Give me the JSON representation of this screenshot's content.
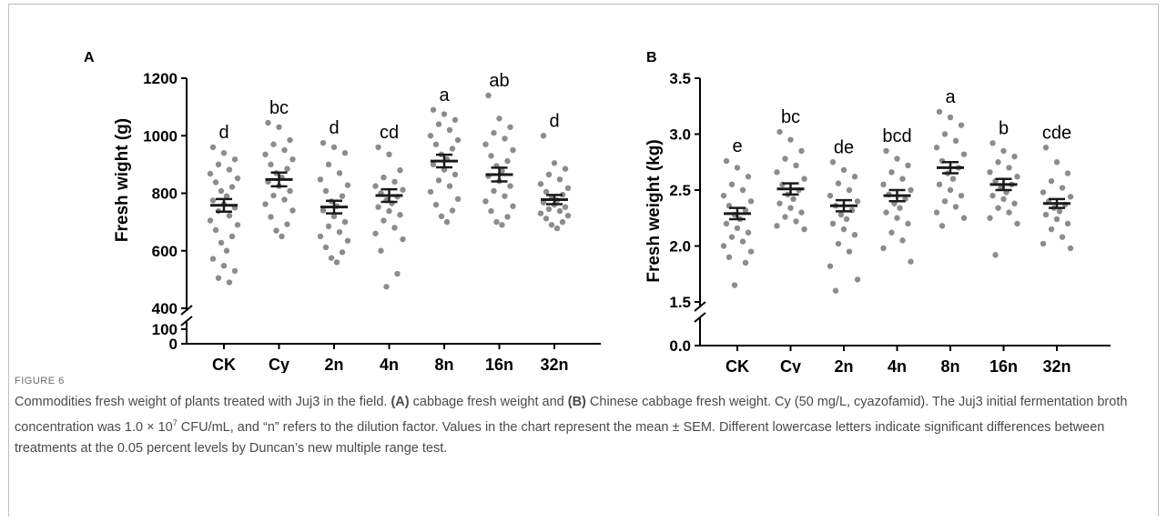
{
  "figure": {
    "label": "FIGURE 6",
    "caption": {
      "part1": "Commodities fresh weight of plants treated with Juj3 in the field. ",
      "tagA": "(A)",
      "part2": " cabbage fresh weight and ",
      "tagB": "(B)",
      "part3": " Chinese cabbage fresh weight. Cy (50 mg/L, cyazofamid). The Juj3 initial fermentation broth concentration was 1.0 × 10",
      "exp": "7",
      "part4": " CFU/mL, and “n” refers to the dilution factor. Values in the chart represent the mean ± SEM. Different lowercase letters indicate significant differences between treatments at the 0.05 percent levels by Duncan’s new multiple range test."
    }
  },
  "colors": {
    "points": "#8c8c8c",
    "mean": "#1a1a1a",
    "axis": "#000000"
  },
  "chart_data": [
    {
      "type": "scatter",
      "panel": "A",
      "ylabel": "Fresh wight (g)",
      "categories": [
        "CK",
        "Cy",
        "2n",
        "4n",
        "8n",
        "16n",
        "32n"
      ],
      "yaxis": {
        "break": true,
        "lower_ticks": [
          0,
          100
        ],
        "upper_ticks": [
          400,
          600,
          800,
          1000,
          1200
        ],
        "upper_range": [
          400,
          1200
        ]
      },
      "means": [
        758,
        848,
        752,
        792,
        912,
        865,
        778
      ],
      "sem": [
        22,
        24,
        22,
        22,
        22,
        24,
        16
      ],
      "letters": [
        "d",
        "bc",
        "d",
        "cd",
        "a",
        "ab",
        "d"
      ],
      "points": [
        [
          960,
          940,
          918,
          900,
          882,
          868,
          852,
          838,
          822,
          808,
          790,
          775,
          762,
          750,
          738,
          722,
          705,
          690,
          672,
          650,
          628,
          600,
          572,
          548,
          530,
          505,
          490
        ],
        [
          1045,
          1030,
          985,
          970,
          950,
          935,
          918,
          900,
          885,
          870,
          855,
          840,
          825,
          808,
          792,
          778,
          762,
          740,
          718,
          692,
          670,
          650
        ],
        [
          975,
          960,
          940,
          900,
          870,
          848,
          828,
          808,
          790,
          772,
          755,
          740,
          720,
          700,
          685,
          665,
          650,
          635,
          612,
          595,
          575,
          560
        ],
        [
          960,
          935,
          880,
          855,
          840,
          825,
          812,
          800,
          788,
          776,
          765,
          752,
          738,
          725,
          705,
          680,
          660,
          640,
          600,
          520,
          475
        ],
        [
          1090,
          1075,
          1055,
          1040,
          1020,
          1000,
          985,
          970,
          955,
          935,
          918,
          900,
          882,
          865,
          845,
          825,
          805,
          780,
          760,
          740,
          720,
          700
        ],
        [
          1140,
          1060,
          1030,
          1010,
          990,
          970,
          950,
          930,
          912,
          895,
          878,
          860,
          842,
          825,
          808,
          790,
          772,
          755,
          738,
          718,
          700,
          690
        ],
        [
          1000,
          905,
          885,
          865,
          848,
          832,
          818,
          805,
          795,
          785,
          776,
          768,
          760,
          752,
          745,
          738,
          730,
          722,
          712,
          700,
          690,
          678
        ]
      ]
    },
    {
      "type": "scatter",
      "panel": "B",
      "ylabel": "Fresh weight (kg)",
      "categories": [
        "CK",
        "Cy",
        "2n",
        "4n",
        "8n",
        "16n",
        "32n"
      ],
      "yaxis": {
        "break": true,
        "lower_ticks": [
          0.0
        ],
        "upper_ticks": [
          1.5,
          2.0,
          2.5,
          3.0,
          3.5
        ],
        "upper_range": [
          1.5,
          3.5
        ]
      },
      "means": [
        2.29,
        2.51,
        2.36,
        2.45,
        2.7,
        2.55,
        2.38
      ],
      "sem": [
        0.05,
        0.05,
        0.05,
        0.05,
        0.05,
        0.05,
        0.04
      ],
      "letters": [
        "e",
        "bc",
        "de",
        "bcd",
        "a",
        "b",
        "cde"
      ],
      "points": [
        [
          2.76,
          2.7,
          2.62,
          2.55,
          2.5,
          2.45,
          2.4,
          2.36,
          2.32,
          2.28,
          2.24,
          2.2,
          2.16,
          2.12,
          2.08,
          2.04,
          2.0,
          1.95,
          1.9,
          1.85,
          1.65
        ],
        [
          3.02,
          2.95,
          2.85,
          2.78,
          2.72,
          2.66,
          2.6,
          2.55,
          2.5,
          2.46,
          2.42,
          2.38,
          2.34,
          2.3,
          2.26,
          2.22,
          2.18,
          2.15
        ],
        [
          2.75,
          2.68,
          2.62,
          2.56,
          2.5,
          2.45,
          2.4,
          2.36,
          2.32,
          2.28,
          2.24,
          2.2,
          2.15,
          2.1,
          2.02,
          1.95,
          1.82,
          1.7,
          1.6
        ],
        [
          2.85,
          2.78,
          2.72,
          2.66,
          2.6,
          2.55,
          2.5,
          2.46,
          2.42,
          2.38,
          2.34,
          2.3,
          2.25,
          2.2,
          2.12,
          2.05,
          1.98,
          1.86
        ],
        [
          3.2,
          3.15,
          3.08,
          3.0,
          2.94,
          2.88,
          2.82,
          2.76,
          2.7,
          2.65,
          2.6,
          2.55,
          2.5,
          2.45,
          2.4,
          2.35,
          2.3,
          2.25,
          2.18
        ],
        [
          2.92,
          2.85,
          2.8,
          2.75,
          2.7,
          2.66,
          2.62,
          2.58,
          2.55,
          2.52,
          2.48,
          2.45,
          2.42,
          2.38,
          2.34,
          2.3,
          2.25,
          2.2,
          1.92
        ],
        [
          2.88,
          2.75,
          2.65,
          2.58,
          2.52,
          2.48,
          2.44,
          2.4,
          2.37,
          2.34,
          2.31,
          2.28,
          2.24,
          2.2,
          2.15,
          2.08,
          2.02,
          1.98
        ]
      ]
    }
  ]
}
